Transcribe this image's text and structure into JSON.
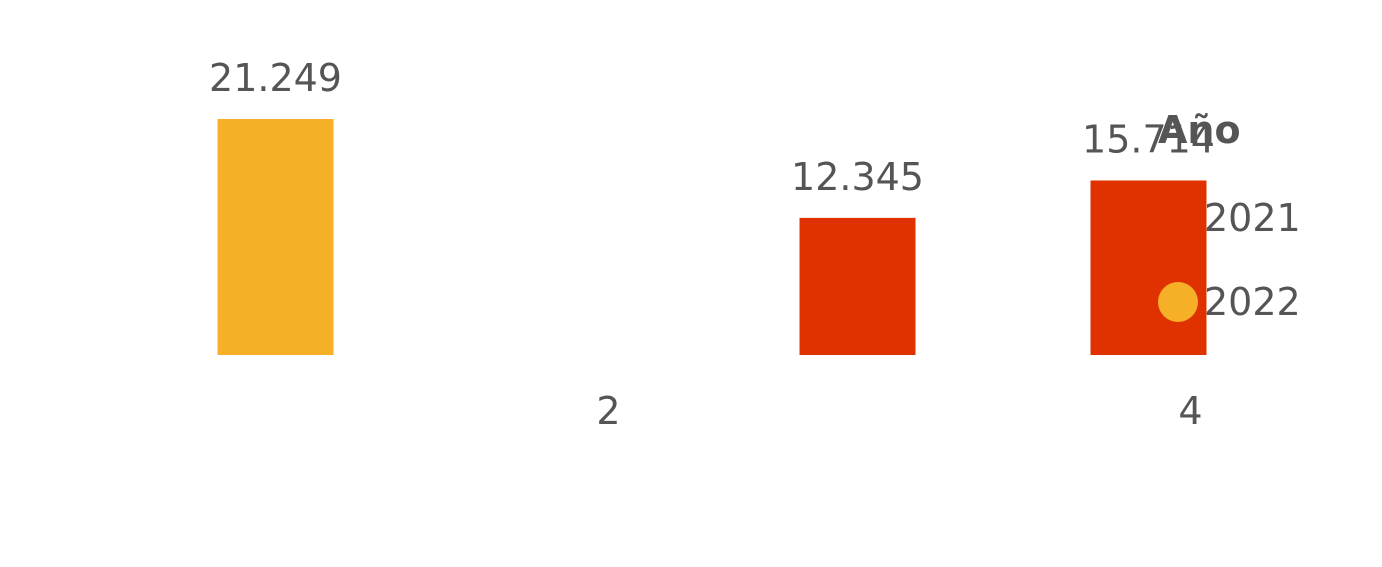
{
  "chart_data": {
    "type": "bar",
    "categories": [
      "",
      "2",
      "",
      "4"
    ],
    "series": [
      {
        "name": "2021",
        "color": "#E03200",
        "values": [
          null,
          null,
          12345,
          15714
        ]
      },
      {
        "name": "2022",
        "color": "#F5B027",
        "values": [
          21249,
          null,
          null,
          null
        ]
      }
    ],
    "value_labels": [
      "21.249",
      "12.345",
      "15.714"
    ],
    "legend": {
      "title": "Año",
      "position": "right"
    },
    "grid": false
  }
}
